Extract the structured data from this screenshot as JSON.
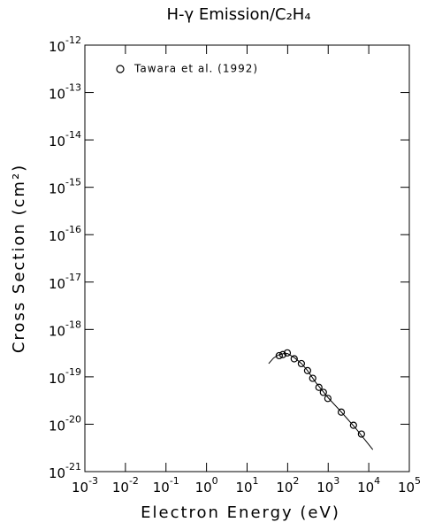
{
  "chart_data": {
    "type": "scatter",
    "title": "H-γ Emission/C₂H₄",
    "xlabel": "Electron Energy (eV)",
    "ylabel": "Cross Section (cm²)",
    "log_x": true,
    "log_y": true,
    "xlim": [
      0.001,
      100000
    ],
    "ylim": [
      1e-21,
      1e-12
    ],
    "xticks": [
      {
        "value": 0.001,
        "label": "10-3"
      },
      {
        "value": 0.01,
        "label": "10-2"
      },
      {
        "value": 0.1,
        "label": "10-1"
      },
      {
        "value": 1,
        "label": "100"
      },
      {
        "value": 10,
        "label": "101"
      },
      {
        "value": 100,
        "label": "102"
      },
      {
        "value": 1000,
        "label": "103"
      },
      {
        "value": 10000,
        "label": "104"
      },
      {
        "value": 100000,
        "label": "105"
      }
    ],
    "yticks": [
      {
        "value": 1e-21,
        "label": "10-21"
      },
      {
        "value": 1e-20,
        "label": "10-20"
      },
      {
        "value": 1e-19,
        "label": "10-19"
      },
      {
        "value": 1e-18,
        "label": "10-18"
      },
      {
        "value": 1e-17,
        "label": "10-17"
      },
      {
        "value": 1e-16,
        "label": "10-16"
      },
      {
        "value": 1e-15,
        "label": "10-15"
      },
      {
        "value": 1e-14,
        "label": "10-14"
      },
      {
        "value": 1e-13,
        "label": "10-13"
      },
      {
        "value": 1e-12,
        "label": "10-12"
      }
    ],
    "legend": "upper left",
    "series": [
      {
        "name": "Tawara et al. (1992)",
        "type": "scatter",
        "color": "#000000",
        "x": [
          62,
          76,
          98,
          145,
          218,
          310,
          415,
          590,
          760,
          980,
          2100,
          4200,
          6600
        ],
        "values": [
          2.8e-19,
          2.95e-19,
          3.2e-19,
          2.4e-19,
          1.9e-19,
          1.35e-19,
          9.3e-20,
          6e-20,
          4.7e-20,
          3.5e-20,
          1.8e-20,
          9.5e-21,
          6.2e-21
        ]
      },
      {
        "type": "line",
        "color": "#000000",
        "x": [
          34,
          45,
          60,
          80,
          100,
          150,
          220,
          300,
          500,
          1000,
          2000,
          5000,
          12600
        ],
        "values": [
          1.9e-19,
          2.5e-19,
          2.9e-19,
          3.1e-19,
          3.1e-19,
          2.5e-19,
          1.9e-19,
          1.4e-19,
          7.5e-20,
          3.6e-20,
          1.9e-20,
          7.8e-21,
          2.9e-21
        ]
      }
    ]
  }
}
